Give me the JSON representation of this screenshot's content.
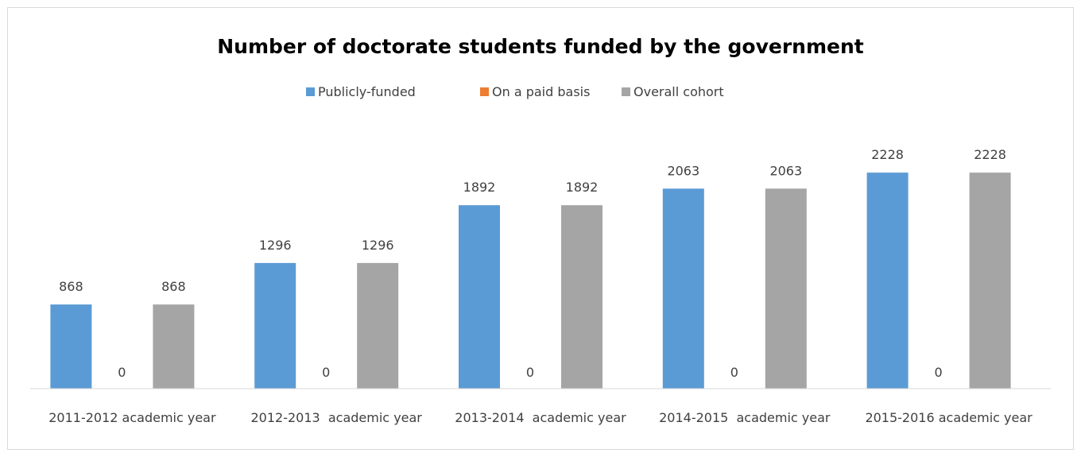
{
  "chart_data": {
    "type": "bar",
    "title": "Number of doctorate students funded by the government",
    "categories": [
      "2011-2012 academic year",
      "2012-2013  academic year",
      "2013-2014  academic year",
      "2014-2015  academic year",
      "2015-2016 academic year"
    ],
    "series": [
      {
        "name": "Publicly-funded",
        "color": "#5b9bd5",
        "values": [
          868,
          1296,
          1892,
          2063,
          2228
        ]
      },
      {
        "name": "On a paid basis",
        "color": "#ed7d31",
        "values": [
          0,
          0,
          0,
          0,
          0
        ]
      },
      {
        "name": "Overall cohort",
        "color": "#a5a5a5",
        "values": [
          868,
          1296,
          1892,
          2063,
          2228
        ]
      }
    ],
    "ylim": [
      0,
      2500
    ],
    "grid": false,
    "legend": "top-center",
    "data_labels": true
  }
}
